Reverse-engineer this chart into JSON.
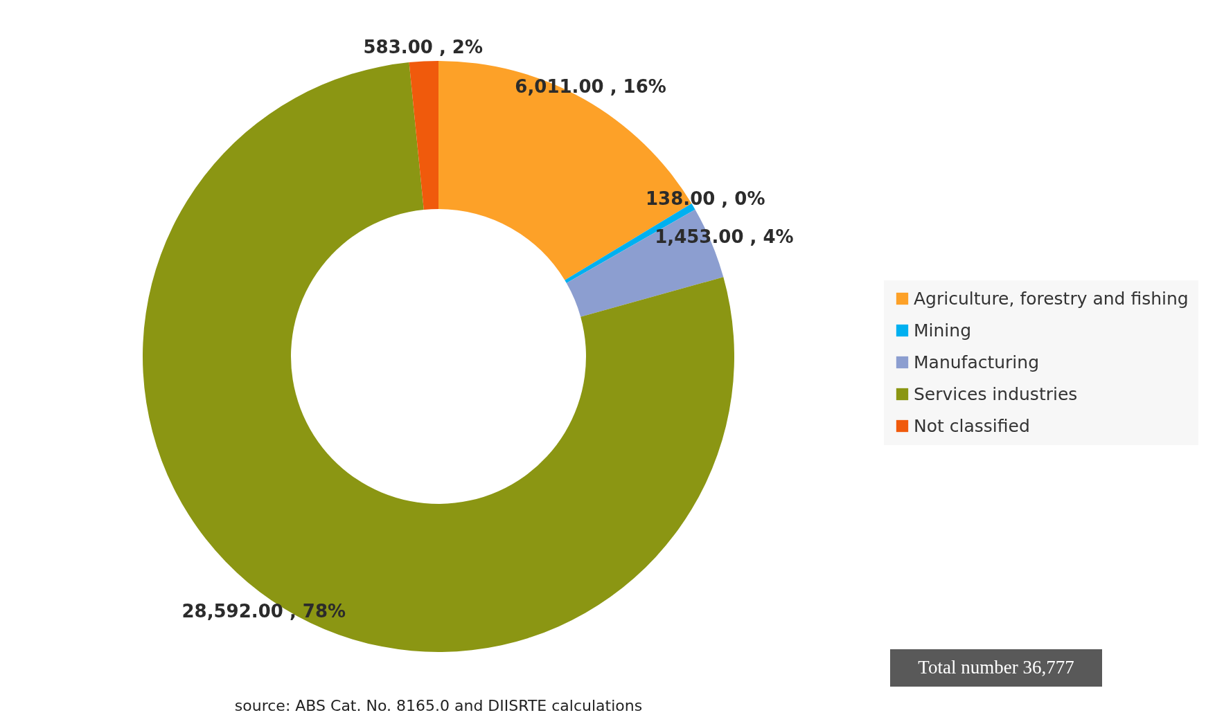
{
  "chart_data": {
    "type": "donut",
    "categories": [
      "Agriculture, forestry and fishing",
      "Mining",
      "Manufacturing",
      "Services industries",
      "Not classified"
    ],
    "values": [
      6011,
      138,
      1453,
      28592,
      583
    ],
    "colors": [
      "#fda128",
      "#00b0f0",
      "#8c9ed0",
      "#8b9613",
      "#f05a0c"
    ],
    "value_labels": [
      "6,011.00 , 16%",
      "138.00 , 0%",
      "1,453.00 , 4%",
      "28,592.00 , 78%",
      "583.00 , 2%"
    ],
    "legend": "right",
    "annotations": [
      "source: ABS Cat. No. 8165.0 and DIISRTE calculations",
      "Total number 36,777"
    ]
  }
}
